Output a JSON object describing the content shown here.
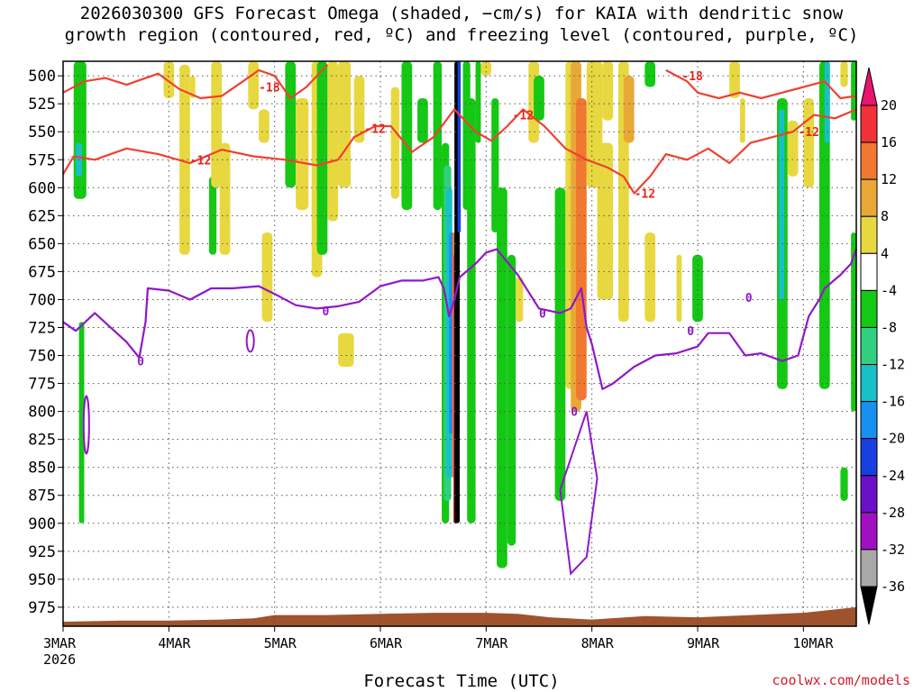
{
  "title_line1": "2026030300 GFS Forecast Omega (shaded, −cm/s) for KAIA with dendritic snow",
  "title_line2": "growth region (contoured, red, ºC) and freezing level (contoured, purple, ºC)",
  "xlabel": "Forecast Time (UTC)",
  "credit": "coolwx.com/models",
  "colors": {
    "red_contour": "#f04030",
    "purple_contour": "#9018c8",
    "ground": "#a0522d",
    "grid": "#555555"
  },
  "chart_data": {
    "type": "heatmap",
    "title": "2026030300 GFS Forecast Omega (shaded, −cm/s) for KAIA with dendritic snow growth region (contoured, red, ºC) and freezing level (contoured, purple, ºC)",
    "xlabel": "Forecast Time (UTC)",
    "ylabel": "",
    "x_ticks": [
      "3MAR",
      "4MAR",
      "5MAR",
      "6MAR",
      "7MAR",
      "8MAR",
      "9MAR",
      "10MAR"
    ],
    "x_year_label": "2026",
    "y_ticks": [
      500,
      525,
      550,
      575,
      600,
      625,
      650,
      675,
      700,
      725,
      750,
      775,
      800,
      825,
      850,
      875,
      900,
      925,
      950,
      975
    ],
    "y_range_hPa": [
      487,
      992
    ],
    "x_range_days": [
      0,
      7.5
    ],
    "colorbar": {
      "levels": [
        20,
        16,
        12,
        8,
        4,
        -4,
        -8,
        -12,
        -16,
        -20,
        -24,
        -28,
        -32,
        -36
      ],
      "colors": [
        "#e8156e",
        "#f2303a",
        "#f07830",
        "#e8a838",
        "#e8d840",
        "#ffffff",
        "#14c814",
        "#30d080",
        "#18c0c8",
        "#1890f0",
        "#1840e0",
        "#6a10c8",
        "#a010c0",
        "#a8a8a8",
        "#000000"
      ]
    },
    "contour_labels": {
      "red": [
        "-18",
        "-12"
      ],
      "purple": [
        "0"
      ]
    },
    "freezing_level_0C_hPa": [
      [
        0.0,
        720
      ],
      [
        0.12,
        728
      ],
      [
        0.3,
        712
      ],
      [
        0.6,
        738
      ],
      [
        0.72,
        752
      ],
      [
        0.78,
        720
      ],
      [
        0.8,
        690
      ],
      [
        1.0,
        692
      ],
      [
        1.2,
        700
      ],
      [
        1.4,
        690
      ],
      [
        1.6,
        690
      ],
      [
        1.85,
        688
      ],
      [
        2.0,
        695
      ],
      [
        2.2,
        705
      ],
      [
        2.4,
        708
      ],
      [
        2.6,
        706
      ],
      [
        2.8,
        702
      ],
      [
        3.0,
        688
      ],
      [
        3.2,
        683
      ],
      [
        3.4,
        683
      ],
      [
        3.55,
        680
      ],
      [
        3.6,
        690
      ],
      [
        3.65,
        715
      ],
      [
        3.7,
        700
      ],
      [
        3.75,
        680
      ],
      [
        3.9,
        668
      ],
      [
        4.0,
        658
      ],
      [
        4.1,
        655
      ],
      [
        4.3,
        678
      ],
      [
        4.5,
        708
      ],
      [
        4.7,
        712
      ],
      [
        4.8,
        708
      ],
      [
        4.9,
        690
      ],
      [
        4.95,
        725
      ],
      [
        5.0,
        740
      ],
      [
        5.1,
        780
      ],
      [
        5.2,
        775
      ],
      [
        5.4,
        760
      ],
      [
        5.6,
        750
      ],
      [
        5.8,
        748
      ],
      [
        6.0,
        742
      ],
      [
        6.1,
        730
      ],
      [
        6.3,
        730
      ],
      [
        6.45,
        750
      ],
      [
        6.6,
        748
      ],
      [
        6.8,
        755
      ],
      [
        6.95,
        750
      ],
      [
        7.05,
        715
      ],
      [
        7.15,
        700
      ],
      [
        7.2,
        690
      ],
      [
        7.35,
        678
      ],
      [
        7.45,
        668
      ],
      [
        7.5,
        655
      ]
    ],
    "dgz_minus12C_hPa": [
      [
        0.0,
        588
      ],
      [
        0.1,
        572
      ],
      [
        0.3,
        575
      ],
      [
        0.6,
        565
      ],
      [
        0.9,
        570
      ],
      [
        1.2,
        578
      ],
      [
        1.5,
        566
      ],
      [
        1.8,
        572
      ],
      [
        2.1,
        575
      ],
      [
        2.4,
        580
      ],
      [
        2.6,
        575
      ],
      [
        2.75,
        555
      ],
      [
        2.95,
        545
      ],
      [
        3.1,
        545
      ],
      [
        3.3,
        568
      ],
      [
        3.5,
        555
      ],
      [
        3.7,
        530
      ],
      [
        3.9,
        550
      ],
      [
        4.05,
        558
      ],
      [
        4.2,
        545
      ],
      [
        4.35,
        530
      ],
      [
        4.55,
        545
      ],
      [
        4.75,
        565
      ],
      [
        4.95,
        575
      ],
      [
        5.15,
        582
      ],
      [
        5.3,
        590
      ],
      [
        5.4,
        605
      ],
      [
        5.55,
        590
      ],
      [
        5.7,
        570
      ],
      [
        5.9,
        575
      ],
      [
        6.1,
        565
      ],
      [
        6.3,
        578
      ],
      [
        6.5,
        560
      ],
      [
        6.7,
        555
      ],
      [
        6.9,
        550
      ],
      [
        7.1,
        535
      ],
      [
        7.3,
        538
      ],
      [
        7.5,
        530
      ]
    ],
    "dgz_minus18C_hPa": [
      [
        0.0,
        515
      ],
      [
        0.2,
        505
      ],
      [
        0.4,
        502
      ],
      [
        0.6,
        508
      ],
      [
        0.9,
        498
      ],
      [
        1.1,
        512
      ],
      [
        1.3,
        520
      ],
      [
        1.5,
        518
      ],
      [
        1.7,
        505
      ],
      [
        1.85,
        495
      ],
      [
        2.0,
        500
      ],
      [
        2.15,
        520
      ],
      [
        2.3,
        510
      ],
      [
        2.5,
        490
      ],
      [
        5.7,
        495
      ],
      [
        5.9,
        505
      ],
      [
        6.0,
        515
      ],
      [
        6.2,
        520
      ],
      [
        6.4,
        515
      ],
      [
        6.6,
        520
      ],
      [
        6.8,
        515
      ],
      [
        7.0,
        510
      ],
      [
        7.2,
        505
      ],
      [
        7.35,
        520
      ],
      [
        7.5,
        518
      ]
    ],
    "ground_hPa": [
      [
        0.0,
        988
      ],
      [
        0.5,
        987
      ],
      [
        1.0,
        987
      ],
      [
        1.5,
        986
      ],
      [
        1.8,
        985
      ],
      [
        2.0,
        982
      ],
      [
        2.5,
        982
      ],
      [
        3.0,
        981
      ],
      [
        3.5,
        980
      ],
      [
        4.0,
        980
      ],
      [
        4.3,
        981
      ],
      [
        4.6,
        984
      ],
      [
        5.0,
        986
      ],
      [
        5.5,
        983
      ],
      [
        6.0,
        984
      ],
      [
        6.5,
        982
      ],
      [
        7.0,
        980
      ],
      [
        7.3,
        977
      ],
      [
        7.5,
        975
      ]
    ]
  }
}
